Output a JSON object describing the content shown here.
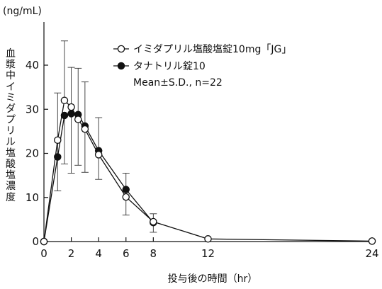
{
  "chart_data": {
    "type": "line",
    "y_unit": "(ng/mL)",
    "ylabel": "血漿中イミダプリル塩酸塩濃度",
    "xlabel": "投与後の時間（hr）",
    "xlim": [
      0,
      24
    ],
    "ylim": [
      0,
      45
    ],
    "x_ticks": [
      0,
      2,
      4,
      6,
      8,
      12,
      24
    ],
    "y_ticks": [
      0,
      10,
      20,
      30,
      40
    ],
    "legend_note": "Mean±S.D., n=22",
    "legend_position": "top-right",
    "grid": false,
    "series": [
      {
        "name": "イミダプリル塩酸塩錠10mg「JG」",
        "marker": "open-circle",
        "x": [
          0,
          1,
          1.5,
          2,
          2.5,
          3,
          4,
          6,
          8,
          12,
          24
        ],
        "y": [
          0,
          23.0,
          32.0,
          30.5,
          27.7,
          25.5,
          19.7,
          10.1,
          4.5,
          0.6,
          0.1
        ],
        "err_plus": [
          0,
          0,
          13.5,
          0,
          0,
          0,
          0,
          0,
          0,
          0,
          0
        ],
        "err_minus": [
          0,
          11.5,
          0,
          0,
          0,
          0,
          0,
          0,
          0,
          0,
          0
        ]
      },
      {
        "name": "タナトリル錠10",
        "marker": "filled-circle",
        "x": [
          0,
          1,
          1.5,
          2,
          2.5,
          3,
          4,
          6,
          8
        ],
        "y": [
          0,
          19.2,
          28.6,
          29.0,
          28.8,
          26.2,
          20.6,
          11.8,
          4.3
        ],
        "err_plus": [
          0,
          14.5,
          0,
          10.5,
          10.5,
          10.0,
          7.5,
          3.7,
          2.0
        ],
        "err_minus": [
          0,
          0,
          11.0,
          13.5,
          11.5,
          10.5,
          6.5,
          5.8,
          2.2
        ]
      }
    ]
  }
}
